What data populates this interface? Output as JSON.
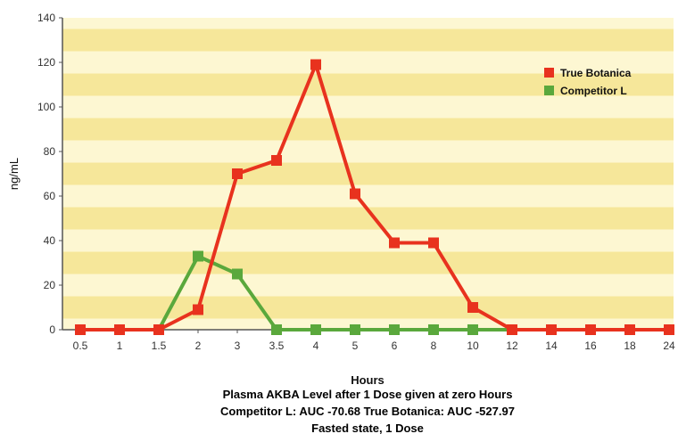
{
  "chart_data": {
    "type": "line",
    "xlabel": "Hours",
    "ylabel": "ng/mL",
    "categories": [
      "0.5",
      "1",
      "1.5",
      "2",
      "3",
      "3.5",
      "4",
      "5",
      "6",
      "8",
      "10",
      "12",
      "14",
      "16",
      "18",
      "24"
    ],
    "ylim": [
      0,
      140
    ],
    "yticks": [
      0,
      20,
      40,
      60,
      80,
      100,
      120,
      140
    ],
    "grid": "horizontal bands",
    "legend": "top-right",
    "series": [
      {
        "name": "True Botanica",
        "color": "#e8321e",
        "values": [
          0,
          0,
          0,
          9,
          70,
          76,
          119,
          61,
          39,
          39,
          10,
          0,
          0,
          0,
          0,
          0
        ]
      },
      {
        "name": "Competitor L",
        "color": "#5aa83c",
        "values": [
          0,
          0,
          0,
          33,
          25,
          0,
          0,
          0,
          0,
          0,
          0,
          0,
          0,
          0,
          0,
          0
        ]
      }
    ],
    "caption": [
      "Plasma AKBA Level after 1 Dose given at zero Hours",
      "Competitor L: AUC -70.68   True Botanica: AUC -527.97",
      "Fasted  state, 1 Dose"
    ]
  },
  "colors": {
    "plot_background": "#fdf7d2",
    "band": "#f6e79a",
    "axis": "#555555"
  }
}
